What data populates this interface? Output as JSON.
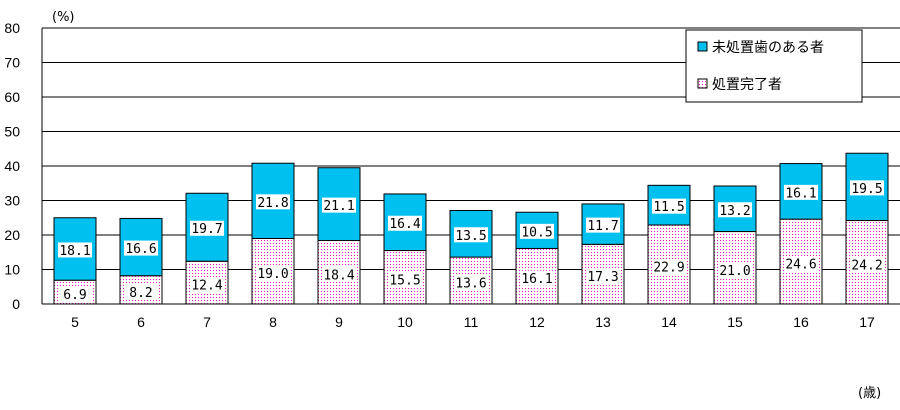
{
  "chart_data": {
    "type": "bar",
    "stacked": true,
    "y_unit_label": "(%)",
    "x_unit_label": "(歳)",
    "ylim": [
      0,
      80
    ],
    "yticks": [
      0,
      10,
      20,
      30,
      40,
      50,
      60,
      70,
      80
    ],
    "grid": true,
    "legend_position": "top-right",
    "categories": [
      "5",
      "6",
      "7",
      "8",
      "9",
      "10",
      "11",
      "12",
      "13",
      "14",
      "15",
      "16",
      "17"
    ],
    "series": [
      {
        "name": "処置完了者",
        "color": "#ffffff",
        "pattern": "pink-dots",
        "values": [
          6.9,
          8.2,
          12.4,
          19.0,
          18.4,
          15.5,
          13.6,
          16.1,
          17.3,
          22.9,
          21.0,
          24.6,
          24.2
        ],
        "labels": [
          "6.9",
          "8.2",
          "12.4",
          "19.0",
          "18.4",
          "15.5",
          "13.6",
          "16.1",
          "17.3",
          "22.9",
          "21.0",
          "24.6",
          "24.2"
        ]
      },
      {
        "name": "未処置歯のある者",
        "color": "#00c0f0",
        "values": [
          18.1,
          16.6,
          19.7,
          21.8,
          21.1,
          16.4,
          13.5,
          10.5,
          11.7,
          11.5,
          13.2,
          16.1,
          19.5
        ],
        "labels": [
          "18.1",
          "16.6",
          "19.7",
          "21.8",
          "21.1",
          "16.4",
          "13.5",
          "10.5",
          "11.7",
          "11.5",
          "13.2",
          "16.1",
          "19.5"
        ]
      }
    ]
  }
}
